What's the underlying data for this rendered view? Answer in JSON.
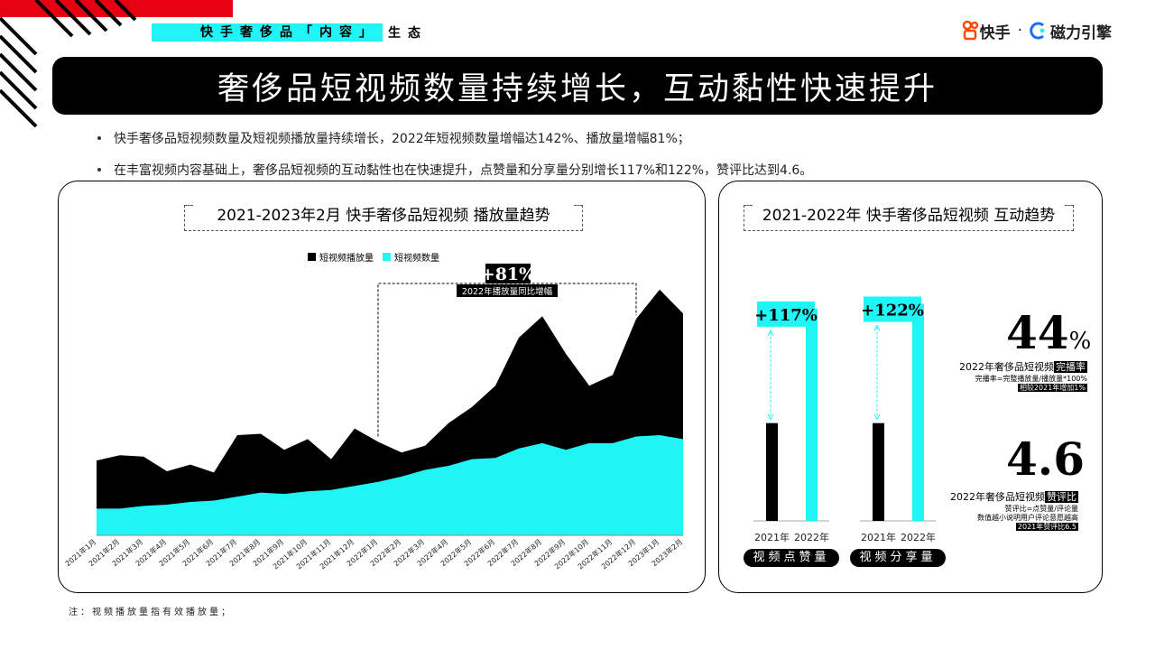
{
  "header": {
    "tag_highlight": "快手奢侈品「内容」",
    "tag_rest": "生态",
    "logo_brand": "快手",
    "logo_separator": "·",
    "logo_partner": "磁力引擎"
  },
  "title": "奢侈品短视频数量持续增长，互动黏性快速提升",
  "bullets": [
    "快手奢侈品短视频数量及短视频播放量持续增长，2022年短视频数量增幅达142%、播放量增幅81%；",
    "在丰富视频内容基础上，奢侈品短视频的互动黏性也在快速提升，点赞量和分享量分别增长117%和122%，赞评比达到4.6。"
  ],
  "note": "注：视频播放量指有效播放量；",
  "colors": {
    "accent_cyan": "#1ff5f5",
    "black": "#000000",
    "red": "#e60012"
  },
  "chart_data": [
    {
      "type": "area",
      "title": "2021-2023年2月 快手奢侈品短视频 播放量趋势",
      "categories": [
        "2021年1月",
        "2021年2月",
        "2021年3月",
        "2021年4月",
        "2021年5月",
        "2021年6月",
        "2021年7月",
        "2021年8月",
        "2021年9月",
        "2021年10月",
        "2021年11月",
        "2021年12月",
        "2022年1月",
        "2022年2月",
        "2022年3月",
        "2022年4月",
        "2022年5月",
        "2022年6月",
        "2022年7月",
        "2022年8月",
        "2022年9月",
        "2022年10月",
        "2022年11月",
        "2022年12月",
        "2023年1月",
        "2023年2月"
      ],
      "series": [
        {
          "name": "短视频播放量",
          "color": "#000000",
          "values": [
            28,
            30,
            29.5,
            24,
            26.5,
            23.5,
            37.5,
            38,
            32,
            36,
            28.5,
            40,
            35,
            31,
            33.5,
            42,
            48,
            56,
            74,
            82,
            68,
            56,
            60,
            81,
            92,
            83
          ]
        },
        {
          "name": "短视频数量",
          "color": "#1ff5f5",
          "values": [
            10,
            10,
            11,
            11.5,
            12.5,
            13,
            14.5,
            16,
            15.5,
            16.5,
            17,
            18.5,
            20,
            22,
            24.5,
            26,
            28.5,
            29,
            32.5,
            34.5,
            32,
            34.5,
            34.5,
            37,
            37.5,
            36
          ]
        }
      ],
      "ylim": [
        0,
        100
      ],
      "annotation": {
        "value": "+81%",
        "label": "2022年播放量同比增幅",
        "from": "2022年1月",
        "to": "2022年12月"
      }
    },
    {
      "type": "bar",
      "title": "2021-2022年 快手奢侈品短视频 互动趋势",
      "groups": [
        {
          "name": "视频点赞量",
          "categories": [
            "2021年",
            "2022年"
          ],
          "values": [
            1,
            2.17
          ],
          "growth": "+117%"
        },
        {
          "name": "视频分享量",
          "categories": [
            "2021年",
            "2022年"
          ],
          "values": [
            1,
            2.22
          ],
          "growth": "+122%"
        }
      ],
      "ylim": [
        0,
        2.4
      ]
    }
  ],
  "kpis": [
    {
      "value": "44",
      "unit": "%",
      "label": "2022年奢侈品短视频",
      "label_hl": "完播率",
      "note1": "完播率=完整播放量/播放量*100%",
      "note2": "相较2021年增加1%"
    },
    {
      "value": "4.6",
      "unit": "",
      "label": "2022年奢侈品短视频",
      "label_hl": "赞评比",
      "note1": "赞评比=点赞量/评论量",
      "note2": "数值越小说明用户评论意愿越高",
      "note3": "2021年赞评比6.5"
    }
  ]
}
